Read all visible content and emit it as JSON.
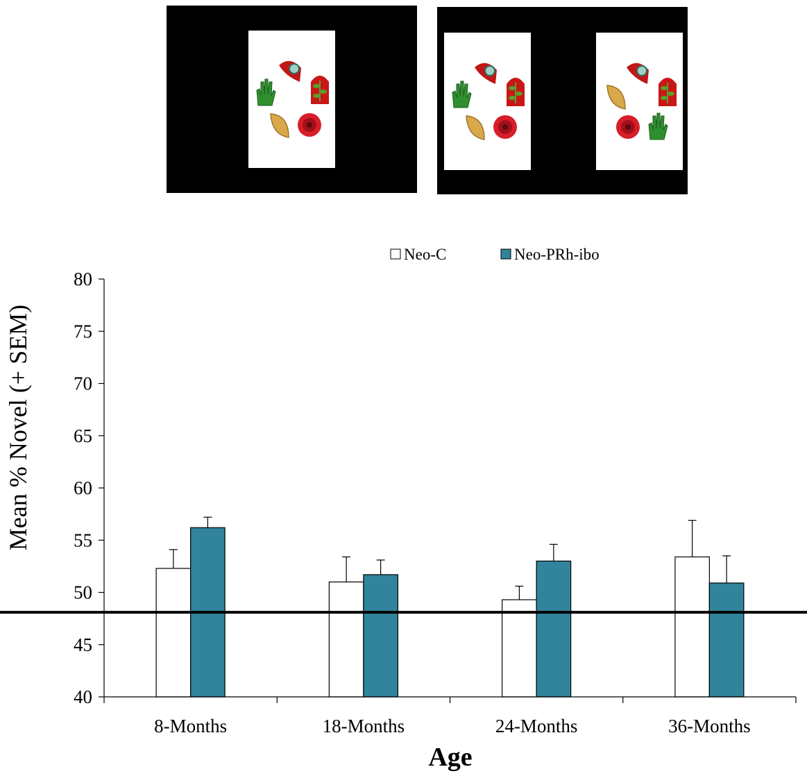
{
  "stimulus": {
    "left_panel": {
      "items": [
        "leaf-magnifier-icon",
        "bell-jar-plant-icon",
        "green-hand-icon",
        "golden-leaf-icon",
        "red-flower-icon"
      ]
    },
    "right_panel": {
      "left_card": {
        "items": [
          "leaf-magnifier-icon",
          "bell-jar-plant-icon",
          "green-hand-icon",
          "golden-leaf-icon",
          "red-flower-icon"
        ]
      },
      "right_card": {
        "items": [
          "leaf-magnifier-icon",
          "bell-jar-plant-icon",
          "golden-leaf-icon",
          "red-flower-icon",
          "green-hand-icon"
        ]
      }
    }
  },
  "chart_data": {
    "type": "bar",
    "title": "",
    "xlabel": "Age",
    "ylabel": "Mean % Novel (+ SEM)",
    "ylim": [
      40,
      80
    ],
    "yticks": [
      40,
      45,
      50,
      55,
      60,
      65,
      70,
      75,
      80
    ],
    "categories": [
      "8-Months",
      "18-Months",
      "24-Months",
      "36-Months"
    ],
    "series": [
      {
        "name": "Neo-C",
        "color": "#ffffff",
        "values": [
          52.3,
          51.0,
          49.3,
          53.4
        ],
        "sem": [
          1.8,
          2.4,
          1.3,
          3.5
        ]
      },
      {
        "name": "Neo-PRh-ibo",
        "color": "#31849b",
        "values": [
          56.2,
          51.7,
          53.0,
          50.9
        ],
        "sem": [
          1.0,
          1.4,
          1.6,
          2.6
        ]
      }
    ],
    "reference_line": 48.1,
    "legend": "top-right",
    "grid": false
  }
}
